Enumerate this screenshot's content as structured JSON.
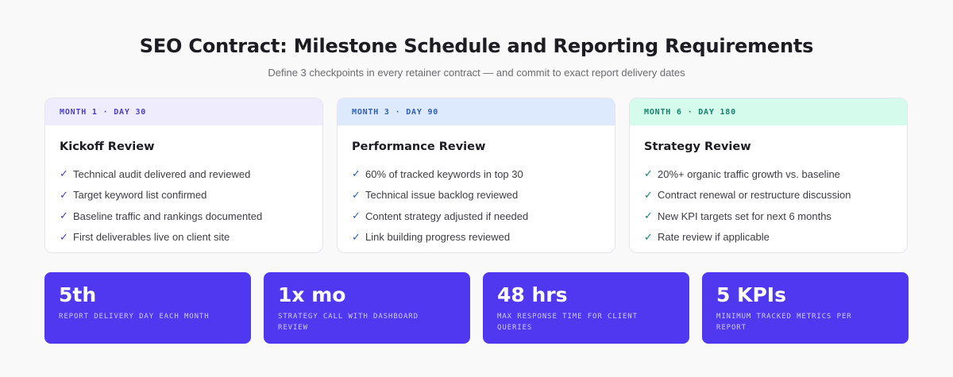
{
  "header": {
    "title": "SEO Contract: Milestone Schedule and Reporting Requirements",
    "subtitle": "Define 3 checkpoints in every retainer contract — and commit to exact report delivery dates"
  },
  "checkpoints": [
    {
      "tag": "MONTH 1 · DAY 30",
      "title": "Kickoff Review",
      "items": [
        "Technical audit delivered and reviewed",
        "Target keyword list confirmed",
        "Baseline traffic and rankings documented",
        "First deliverables live on client site"
      ]
    },
    {
      "tag": "MONTH 3 · DAY 90",
      "title": "Performance Review",
      "items": [
        "60% of tracked keywords in top 30",
        "Technical issue backlog reviewed",
        "Content strategy adjusted if needed",
        "Link building progress reviewed"
      ]
    },
    {
      "tag": "MONTH 6 · DAY 180",
      "title": "Strategy Review",
      "items": [
        "20%+ organic traffic growth vs. baseline",
        "Contract renewal or restructure discussion",
        "New KPI targets set for next 6 months",
        "Rate review if applicable"
      ]
    }
  ],
  "check_glyph": "✓",
  "stats": [
    {
      "value": "5th",
      "label": "REPORT DELIVERY DAY EACH MONTH"
    },
    {
      "value": "1x mo",
      "label": "STRATEGY CALL WITH DASHBOARD REVIEW"
    },
    {
      "value": "48 hrs",
      "label": "MAX RESPONSE TIME FOR CLIENT QUERIES"
    },
    {
      "value": "5 KPIs",
      "label": "MINIMUM TRACKED METRICS PER REPORT"
    }
  ],
  "colors": {
    "card1_header_bg": "#efedfd",
    "card1_accent": "#4b3fc0",
    "card2_header_bg": "#dde9fd",
    "card2_accent": "#2d5fb5",
    "card3_header_bg": "#d4fbec",
    "card3_accent": "#14836a",
    "stat_bg": "#4f38f0"
  }
}
